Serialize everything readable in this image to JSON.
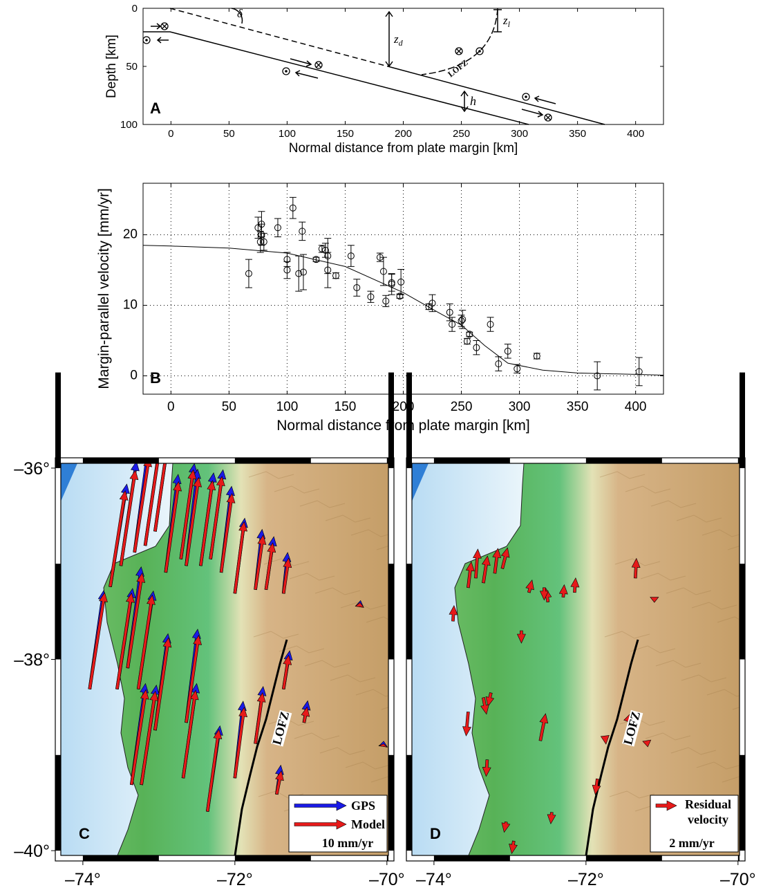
{
  "chart_data": [
    {
      "type": "diagram",
      "panel_label": "A",
      "xlabel": "Normal distance from plate margin [km]",
      "ylabel": "Depth [km]",
      "xlim": [
        -24,
        424
      ],
      "ylim": [
        100,
        0
      ],
      "xticks": [
        0,
        50,
        100,
        150,
        200,
        250,
        300,
        350,
        400
      ],
      "yticks": [
        0,
        50,
        100
      ],
      "annotations": {
        "delta": "δ",
        "zd": {
          "main": "z",
          "sub": "d"
        },
        "zl": {
          "main": "z",
          "sub": "l"
        },
        "h": "h",
        "fault": "LOFZ"
      }
    },
    {
      "type": "scatter",
      "panel_label": "B",
      "xlabel": "Normal distance from plate margin [km]",
      "ylabel": "Margin-parallel velocity [mm/yr]",
      "xlim": [
        -24,
        424
      ],
      "ylim": [
        -2.6,
        27.3
      ],
      "xticks": [
        0,
        50,
        100,
        150,
        200,
        250,
        300,
        350,
        400
      ],
      "yticks": [
        0,
        10,
        20
      ],
      "grid": true,
      "x": [
        67,
        75,
        77,
        78,
        78,
        80,
        92,
        100,
        100,
        105,
        110,
        113,
        114,
        125,
        130,
        133,
        135,
        135,
        142,
        155,
        160,
        172,
        180,
        183,
        185,
        190,
        190,
        197,
        198,
        222,
        225,
        240,
        242,
        250,
        251,
        255,
        257,
        263,
        275,
        282,
        290,
        298,
        315,
        367,
        403
      ],
      "values": [
        14.5,
        21,
        19,
        21.5,
        20,
        19,
        21,
        16.5,
        15,
        23.8,
        14.5,
        20.5,
        14.7,
        16.5,
        18,
        17.8,
        15,
        17,
        14.2,
        17,
        12.5,
        11.2,
        16.8,
        14.8,
        10.6,
        13,
        13.2,
        11.3,
        13.3,
        9.8,
        10.3,
        9,
        7.3,
        7.8,
        8,
        4.9,
        5.9,
        4,
        7.3,
        1.7,
        3.5,
        1,
        2.8,
        0,
        0.6
      ],
      "errors": [
        2,
        1.5,
        1.5,
        1.8,
        1.5,
        1.2,
        1.3,
        1,
        1.2,
        1.5,
        2.5,
        1.3,
        2.5,
        0.3,
        0.5,
        1,
        2.5,
        2.5,
        0.4,
        1.5,
        1.2,
        0.8,
        0.6,
        2,
        0.8,
        1.5,
        1.2,
        0.3,
        1.8,
        0.4,
        1.2,
        1.2,
        1,
        0.8,
        1.3,
        0.4,
        0.3,
        1,
        1,
        1,
        1,
        0.6,
        0.4,
        2,
        2
      ],
      "model": {
        "x": [
          -24,
          0,
          50,
          100,
          150,
          200,
          230,
          250,
          270,
          290,
          320,
          350,
          400,
          424
        ],
        "values": [
          18.5,
          18.4,
          18.1,
          17.4,
          15.5,
          11.8,
          9,
          7.2,
          4.3,
          1.8,
          0.8,
          0.4,
          0.2,
          0.1
        ]
      }
    },
    {
      "type": "map",
      "panel_label": "C",
      "fault_label": "LOFZ",
      "xlim": [
        -74.29,
        -69.98
      ],
      "ylim": [
        -40.05,
        -35.95
      ],
      "xticks": [
        {
          "value": -74,
          "label": "–74°"
        },
        {
          "value": -72,
          "label": "–72°"
        },
        {
          "value": -70,
          "label": "–70°"
        }
      ],
      "yticks": [
        {
          "value": -36,
          "label": "–36°"
        },
        {
          "value": -38,
          "label": "–38°"
        },
        {
          "value": -40,
          "label": "–40°"
        }
      ],
      "series": [
        {
          "name": "GPS",
          "color": "#1a1ae6",
          "lon": [
            -73.64,
            -73.5,
            -73.32,
            -73.18,
            -73.05,
            -72.91,
            -72.71,
            -72.64,
            -72.45,
            -72.32,
            -72.18,
            -72.0,
            -71.73,
            -71.59,
            -71.36,
            -73.91,
            -73.55,
            -73.41,
            -73.27,
            -73.05,
            -73.36,
            -73.23,
            -72.68,
            -72.64,
            -72.36,
            -72.0,
            -71.73,
            -71.36,
            -71.09,
            -71.45,
            -70.36,
            -70.05
          ],
          "lat": [
            -37.24,
            -37.02,
            -36.88,
            -36.81,
            -36.66,
            -37.09,
            -36.95,
            -37.02,
            -37.02,
            -36.95,
            -37.09,
            -37.31,
            -37.27,
            -37.27,
            -37.31,
            -38.31,
            -38.31,
            -38.09,
            -38.31,
            -38.74,
            -39.31,
            -39.31,
            -39.24,
            -38.66,
            -39.59,
            -39.24,
            -38.88,
            -38.31,
            -38.66,
            -39.41,
            -37.45,
            -38.91
          ],
          "east": [
            3.2,
            3.0,
            2.6,
            2.9,
            2.8,
            2.4,
            2.6,
            2.2,
            2.5,
            2.4,
            2.0,
            1.9,
            1.3,
            1.5,
            0.8,
            2.7,
            3.0,
            2.6,
            2.9,
            2.5,
            2.7,
            2.9,
            2.6,
            2.2,
            2.4,
            1.6,
            1.5,
            1.2,
            0.7,
            0.8,
            0.2,
            0.1
          ],
          "north": [
            19.8,
            20.1,
            19.6,
            19.9,
            19.3,
            18.9,
            18.4,
            18.6,
            17.9,
            17.2,
            16.6,
            14.5,
            11.6,
            10.2,
            7.9,
            19.0,
            19.4,
            19.5,
            18.9,
            18.6,
            19.5,
            19.2,
            18.2,
            18.0,
            16.5,
            14.8,
            11.0,
            7.4,
            4.2,
            5.6,
            1.2,
            1.0
          ]
        },
        {
          "name": "Model",
          "color": "#e61a1a",
          "lon": [
            -73.64,
            -73.5,
            -73.32,
            -73.18,
            -73.05,
            -72.91,
            -72.71,
            -72.64,
            -72.45,
            -72.32,
            -72.18,
            -72.0,
            -71.73,
            -71.59,
            -71.36,
            -73.91,
            -73.55,
            -73.41,
            -73.27,
            -73.05,
            -73.36,
            -73.23,
            -72.68,
            -72.64,
            -72.36,
            -72.0,
            -71.73,
            -71.36,
            -71.09,
            -71.45,
            -70.36,
            -70.05
          ],
          "lat": [
            -37.24,
            -37.02,
            -36.88,
            -36.81,
            -36.66,
            -37.09,
            -36.95,
            -37.02,
            -37.02,
            -36.95,
            -37.09,
            -37.31,
            -37.27,
            -37.27,
            -37.31,
            -38.31,
            -38.31,
            -38.09,
            -38.31,
            -38.74,
            -39.31,
            -39.31,
            -39.24,
            -38.66,
            -39.59,
            -39.24,
            -38.88,
            -38.31,
            -38.66,
            -39.41,
            -37.45,
            -38.91
          ],
          "east": [
            2.9,
            2.8,
            2.8,
            2.7,
            2.6,
            2.5,
            2.4,
            2.4,
            2.3,
            2.2,
            2.1,
            1.8,
            1.5,
            1.3,
            1.0,
            2.9,
            2.8,
            2.8,
            2.7,
            2.6,
            2.8,
            2.7,
            2.4,
            2.4,
            2.2,
            1.8,
            1.4,
            1.0,
            0.6,
            0.9,
            0.1,
            0.1
          ],
          "north": [
            18.5,
            18.4,
            18.3,
            18.2,
            18.0,
            17.5,
            17.2,
            17.0,
            16.4,
            15.9,
            15.2,
            13.8,
            10.5,
            9.0,
            6.8,
            18.6,
            18.5,
            18.3,
            18.1,
            17.8,
            18.3,
            18.0,
            16.9,
            16.8,
            15.8,
            13.6,
            9.8,
            6.5,
            3.0,
            4.5,
            0.8,
            0.5
          ]
        }
      ],
      "scale_value": 10,
      "scale_label": "10 mm/yr"
    },
    {
      "type": "map",
      "panel_label": "D",
      "fault_label": "LOFZ",
      "xlim": [
        -74.29,
        -69.98
      ],
      "ylim": [
        -40.05,
        -35.95
      ],
      "xticks": [
        {
          "value": -74,
          "label": "–74°"
        },
        {
          "value": -72,
          "label": "–72°"
        },
        {
          "value": -70,
          "label": "–70°"
        }
      ],
      "series": [
        {
          "name": "Residual velocity",
          "color": "#e61a1a",
          "lon": [
            -73.55,
            -73.45,
            -73.35,
            -73.2,
            -73.1,
            -73.75,
            -72.75,
            -72.5,
            -72.55,
            -72.3,
            -72.15,
            -71.35,
            -72.85,
            -73.25,
            -73.55,
            -73.35,
            -72.6,
            -73.3,
            -71.75,
            -71.45,
            -72.45,
            -73.05,
            -71.85,
            -72.95,
            -71.1,
            -71.2
          ],
          "lat": [
            -37.25,
            -37.15,
            -37.2,
            -37.1,
            -37.05,
            -37.6,
            -37.3,
            -37.4,
            -37.25,
            -37.35,
            -37.3,
            -37.15,
            -37.7,
            -38.35,
            -38.55,
            -38.4,
            -38.85,
            -39.05,
            -38.8,
            -38.65,
            -39.6,
            -39.7,
            -39.25,
            -39.9,
            -37.35,
            -38.85
          ],
          "east": [
            0.3,
            0.2,
            0.4,
            0.3,
            0.5,
            0.1,
            0.3,
            -0.2,
            0,
            0.1,
            0.1,
            0.1,
            0,
            -0.3,
            -0.2,
            0.3,
            0.5,
            -0.1,
            0.1,
            0.3,
            -0.1,
            -0.2,
            -0.2,
            -0.2,
            0,
            0.1
          ],
          "north": [
            2.5,
            2.8,
            2.6,
            2.4,
            2.0,
            1.5,
            1.2,
            1.3,
            -1.2,
            1.2,
            1.4,
            1.9,
            -1.2,
            -1.3,
            -2.3,
            -1.6,
            2.6,
            -1.6,
            -0.8,
            0.8,
            -1.1,
            -1.0,
            -1.5,
            -1.2,
            -0.5,
            -0.6
          ]
        }
      ],
      "scale_value": 2,
      "scale_label": "2 mm/yr"
    }
  ]
}
